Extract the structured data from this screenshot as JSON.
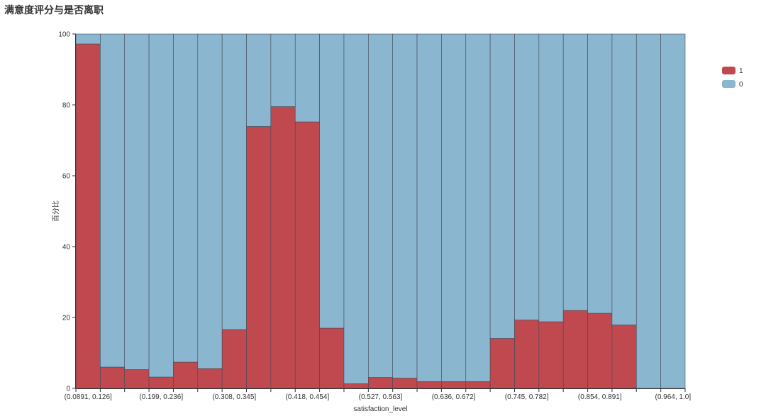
{
  "title": "满意度评分与是否离职",
  "chart_data": {
    "type": "bar",
    "stacked": true,
    "normalized_percent": true,
    "xlabel": "satisfaction_level",
    "ylabel": "百分比",
    "ylim": [
      0,
      100
    ],
    "yticks": [
      0,
      20,
      40,
      60,
      80,
      100
    ],
    "categories": [
      "(0.0891, 0.126]",
      "(0.126, 0.163]",
      "(0.163, 0.199]",
      "(0.199, 0.236]",
      "(0.236, 0.272]",
      "(0.272, 0.308]",
      "(0.308, 0.345]",
      "(0.345, 0.381]",
      "(0.381, 0.418]",
      "(0.418, 0.454]",
      "(0.454, 0.491]",
      "(0.491, 0.527]",
      "(0.527, 0.563]",
      "(0.563, 0.6]",
      "(0.6, 0.636]",
      "(0.636, 0.672]",
      "(0.672, 0.709]",
      "(0.709, 0.745]",
      "(0.745, 0.782]",
      "(0.782, 0.818]",
      "(0.818, 0.854]",
      "(0.854, 0.891]",
      "(0.891, 0.927]",
      "(0.927, 0.964]",
      "(0.964, 1.0]"
    ],
    "visible_tick_labels": [
      "(0.0891, 0.126]",
      "(0.199, 0.236]",
      "(0.308, 0.345]",
      "(0.418, 0.454]",
      "(0.527, 0.563]",
      "(0.636, 0.672]",
      "(0.745, 0.782]",
      "(0.854, 0.891]",
      "(0.964, 1.0]"
    ],
    "series": [
      {
        "name": "1",
        "color": "#c0494f",
        "values": [
          97.2,
          6.0,
          5.3,
          3.2,
          7.4,
          5.6,
          16.6,
          73.9,
          79.5,
          75.2,
          17.0,
          1.3,
          3.1,
          2.9,
          1.9,
          1.9,
          1.9,
          14.1,
          19.3,
          18.8,
          22.0,
          21.2,
          17.9,
          0,
          0
        ]
      },
      {
        "name": "0",
        "color": "#8bb6d0",
        "values": [
          2.8,
          94.0,
          94.7,
          96.8,
          92.6,
          94.4,
          83.4,
          26.1,
          20.5,
          24.8,
          83.0,
          98.7,
          96.9,
          97.1,
          98.1,
          98.1,
          98.1,
          85.9,
          80.7,
          81.2,
          78.0,
          78.8,
          82.1,
          100,
          100
        ]
      }
    ],
    "legend_position": "top-right",
    "grid": false
  }
}
